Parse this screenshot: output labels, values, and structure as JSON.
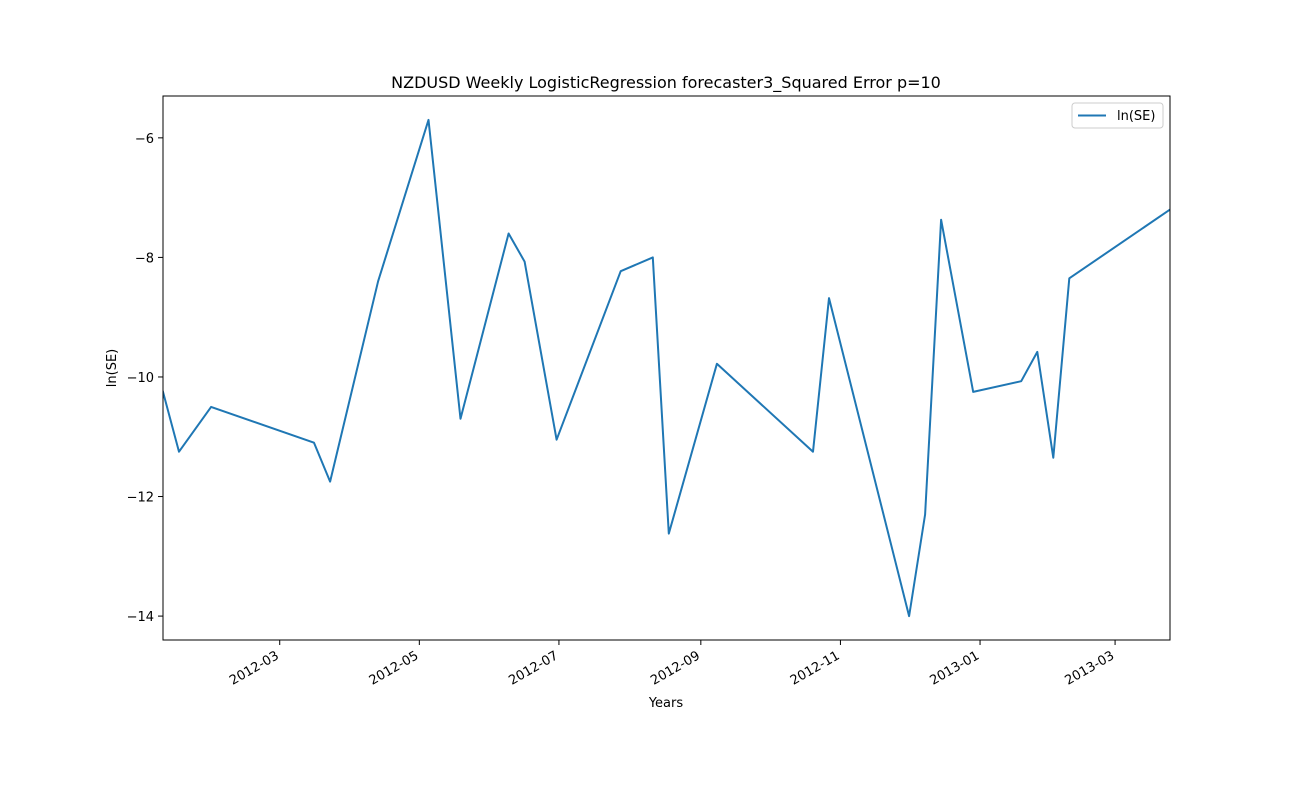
{
  "chart_data": {
    "type": "line",
    "title": "NZDUSD Weekly LogisticRegression forecaster3_Squared Error p=10",
    "xlabel": "Years",
    "ylabel": "ln(SE)",
    "xlim": [
      "2012-01-10",
      "2013-03-25"
    ],
    "ylim": [
      -14.4,
      -5.3
    ],
    "x_ticks": [
      "2012-03",
      "2012-05",
      "2012-07",
      "2012-09",
      "2012-11",
      "2013-01",
      "2013-03"
    ],
    "y_ticks": [
      -6,
      -8,
      -10,
      -12,
      -14
    ],
    "y_tick_labels": [
      "−6",
      "−8",
      "−10",
      "−12",
      "−14"
    ],
    "grid": false,
    "legend_position": "top-right",
    "series": [
      {
        "name": "ln(SE)",
        "color": "#1f77b4",
        "x": [
          "2012-01-10",
          "2012-01-17",
          "2012-01-31",
          "2012-03-16",
          "2012-03-23",
          "2012-04-13",
          "2012-05-05",
          "2012-05-19",
          "2012-06-09",
          "2012-06-16",
          "2012-06-30",
          "2012-07-28",
          "2012-08-11",
          "2012-08-18",
          "2012-09-08",
          "2012-10-20",
          "2012-10-27",
          "2012-12-01",
          "2012-12-08",
          "2012-12-15",
          "2012-12-29",
          "2013-01-19",
          "2013-01-26",
          "2013-02-02",
          "2013-02-09",
          "2013-03-25"
        ],
        "values": [
          -10.25,
          -11.25,
          -10.5,
          -11.1,
          -11.75,
          -8.4,
          -5.7,
          -10.7,
          -7.6,
          -8.07,
          -11.05,
          -8.23,
          -8.0,
          -12.62,
          -9.78,
          -11.25,
          -8.68,
          -14.0,
          -12.3,
          -7.37,
          -10.25,
          -10.07,
          -9.58,
          -11.35,
          -8.35,
          -7.2
        ]
      }
    ]
  }
}
